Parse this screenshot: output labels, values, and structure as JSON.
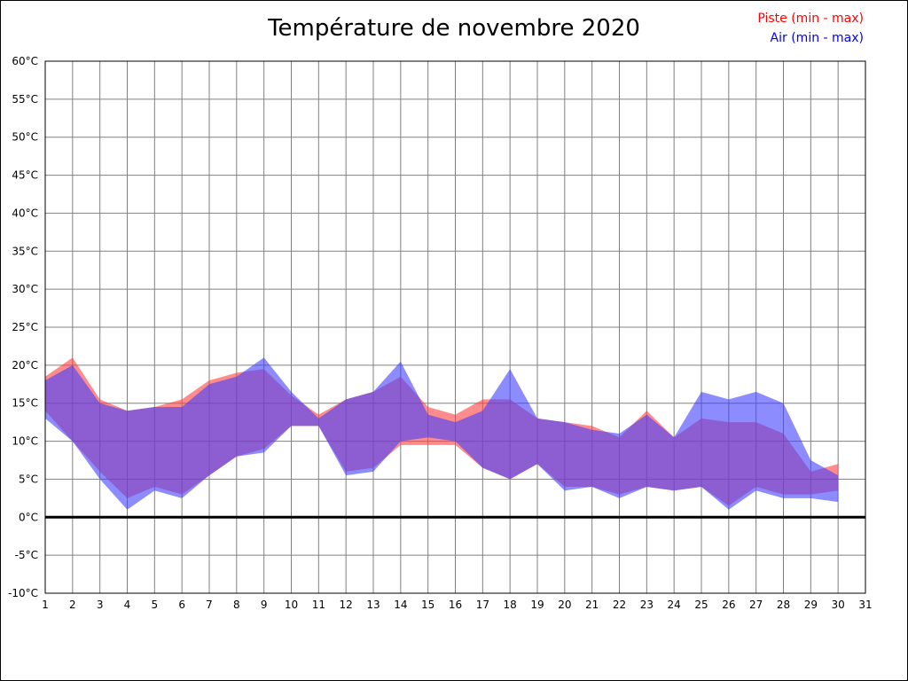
{
  "title": "Température de novembre 2020",
  "legend": {
    "piste_label": "Piste (min - max)",
    "piste_color": "#ff0000",
    "air_label": "Air (min - max)",
    "air_color": "#0000ff"
  },
  "chart_data": {
    "type": "area",
    "title": "Température de novembre 2020",
    "xlabel": "",
    "ylabel": "",
    "grid": true,
    "legend_position": "top-right",
    "zero_line_at": 0,
    "x_axis": {
      "range": [
        1,
        31
      ],
      "ticks": [
        1,
        2,
        3,
        4,
        5,
        6,
        7,
        8,
        9,
        10,
        11,
        12,
        13,
        14,
        15,
        16,
        17,
        18,
        19,
        20,
        21,
        22,
        23,
        24,
        25,
        26,
        27,
        28,
        29,
        30,
        31
      ]
    },
    "y_axis": {
      "range": [
        -10,
        60
      ],
      "unit": "°C",
      "ticks": [
        -10,
        -5,
        0,
        5,
        10,
        15,
        20,
        25,
        30,
        35,
        40,
        45,
        50,
        55,
        60
      ]
    },
    "days": [
      1,
      2,
      3,
      4,
      5,
      6,
      7,
      8,
      9,
      10,
      11,
      12,
      13,
      14,
      15,
      16,
      17,
      18,
      19,
      20,
      21,
      22,
      23,
      24,
      25,
      26,
      27,
      28,
      29,
      30
    ],
    "series": [
      {
        "name": "Piste (min - max)",
        "fill": "#ff4040",
        "opacity": 0.6,
        "min": [
          14,
          10,
          6,
          2.5,
          4,
          3,
          5.5,
          8,
          9,
          12,
          12,
          6,
          6.5,
          9.5,
          9.5,
          9.5,
          6.5,
          5,
          7,
          4,
          4,
          3,
          4,
          3.5,
          4,
          1.5,
          4,
          3,
          3,
          3.5
        ],
        "max": [
          18.5,
          21,
          15.5,
          14,
          14.5,
          15.5,
          18,
          19,
          19.5,
          16,
          13.5,
          15.5,
          16.5,
          18.5,
          14.5,
          13.5,
          15.5,
          15.5,
          13,
          12.5,
          12,
          10.5,
          14,
          10.5,
          13,
          12.5,
          12.5,
          11,
          6,
          7
        ]
      },
      {
        "name": "Air (min - max)",
        "fill": "#4040ff",
        "opacity": 0.6,
        "min": [
          13,
          10,
          5,
          1,
          3.5,
          2.5,
          5.5,
          8,
          8.5,
          12,
          12,
          5.5,
          6,
          10,
          10.5,
          10,
          6.5,
          5,
          7,
          3.5,
          4,
          2.5,
          4,
          3.5,
          4,
          1,
          3.5,
          2.5,
          2.5,
          2
        ],
        "max": [
          18,
          20,
          15,
          14,
          14.5,
          14.5,
          17.5,
          18.5,
          21,
          16.5,
          13,
          15.5,
          16.5,
          20.5,
          13.5,
          12.5,
          14,
          19.5,
          13,
          12.5,
          11.5,
          11,
          13.5,
          10.5,
          16.5,
          15.5,
          16.5,
          15,
          7.5,
          5.5
        ]
      }
    ]
  }
}
